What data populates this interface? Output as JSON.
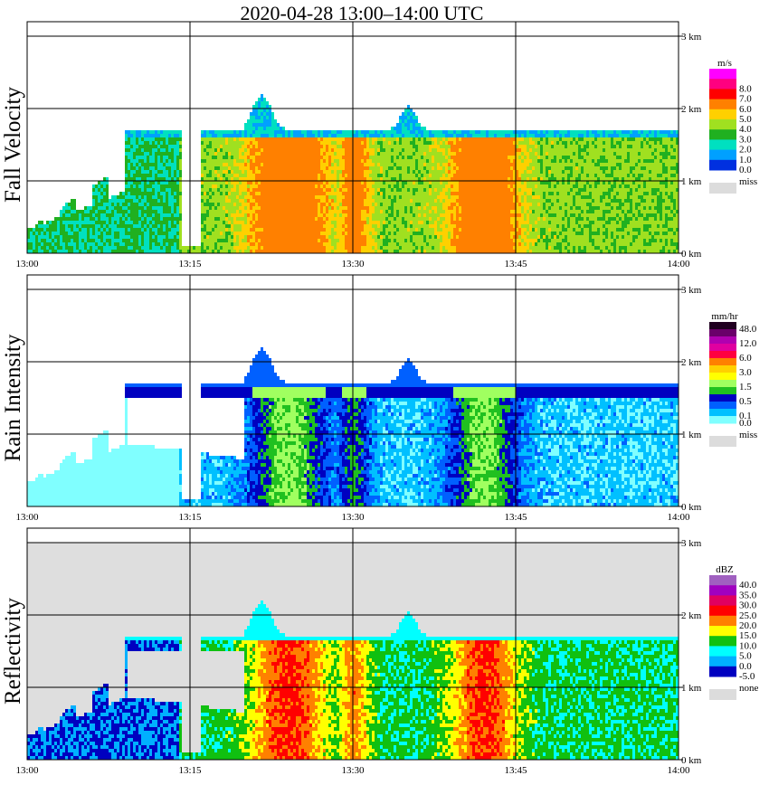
{
  "title": "2020-04-28   13:00–14:00 UTC",
  "x_ticks": [
    "13:00",
    "13:15",
    "13:30",
    "13:45",
    "14:00"
  ],
  "height_ticks": [
    "0 km",
    "1 km",
    "2 km",
    "3 km"
  ],
  "panels": [
    {
      "key": "fall_velocity",
      "ylabel": "Fall Velocity",
      "unit": "m/s",
      "missing_label": "miss",
      "background": "#ffffff",
      "levels": [
        {
          "label": "",
          "color": "#ff00ff"
        },
        {
          "label": "8.0",
          "color": "#ff0080"
        },
        {
          "label": "7.0",
          "color": "#ff0000"
        },
        {
          "label": "6.0",
          "color": "#ff8000"
        },
        {
          "label": "5.0",
          "color": "#ffd000"
        },
        {
          "label": "4.0",
          "color": "#a0e020"
        },
        {
          "label": "3.0",
          "color": "#20b020"
        },
        {
          "label": "2.0",
          "color": "#00e0c0"
        },
        {
          "label": "1.0",
          "color": "#00a0ff"
        },
        {
          "label": "0.0",
          "color": "#0030e0"
        }
      ]
    },
    {
      "key": "rain_intensity",
      "ylabel": "Rain Intensity",
      "unit": "mm/hr",
      "missing_label": "miss",
      "background": "#ffffff",
      "levels": [
        {
          "label": "48.0",
          "color": "#200020"
        },
        {
          "label": "",
          "color": "#6a006a"
        },
        {
          "label": "12.0",
          "color": "#b000b0"
        },
        {
          "label": "",
          "color": "#e000a0"
        },
        {
          "label": "6.0",
          "color": "#ff0040"
        },
        {
          "label": "",
          "color": "#ff8000"
        },
        {
          "label": "3.0",
          "color": "#ffd000"
        },
        {
          "label": "",
          "color": "#ffff00"
        },
        {
          "label": "1.5",
          "color": "#a0ff60"
        },
        {
          "label": "",
          "color": "#20c020"
        },
        {
          "label": "0.5",
          "color": "#0000c0"
        },
        {
          "label": "",
          "color": "#0060ff"
        },
        {
          "label": "0.1",
          "color": "#00c0ff"
        },
        {
          "label": "0.0",
          "color": "#80ffff"
        }
      ]
    },
    {
      "key": "reflectivity",
      "ylabel": "Reflectivity",
      "unit": "dBZ",
      "missing_label": "none",
      "background": "#dedede",
      "levels": [
        {
          "label": "40.0",
          "color": "#a060c0"
        },
        {
          "label": "35.0",
          "color": "#a000c0"
        },
        {
          "label": "30.0",
          "color": "#e00060"
        },
        {
          "label": "25.0",
          "color": "#ff0000"
        },
        {
          "label": "20.0",
          "color": "#ff8000"
        },
        {
          "label": "15.0",
          "color": "#ffff00"
        },
        {
          "label": "10.0",
          "color": "#10c010"
        },
        {
          "label": "5.0",
          "color": "#00ffff"
        },
        {
          "label": "0.0",
          "color": "#00b0ff"
        },
        {
          "label": "-5.0",
          "color": "#0000c0"
        }
      ]
    }
  ],
  "chart_data": {
    "type": "heatmap",
    "title": "2020-04-28   13:00–14:00 UTC",
    "x_label": "",
    "y_label": "",
    "x_range": [
      "13:00",
      "14:00"
    ],
    "y_range_km": [
      0,
      3
    ],
    "grid": true,
    "panels": [
      "Fall Velocity",
      "Rain Intensity",
      "Reflectivity"
    ],
    "features": {
      "melting_layer_height_km": 1.65,
      "main_rain_periods": [
        [
          "13:21",
          "13:27"
        ],
        [
          "13:39",
          "13:44"
        ]
      ],
      "max_echo_top_km": 2.2
    }
  }
}
